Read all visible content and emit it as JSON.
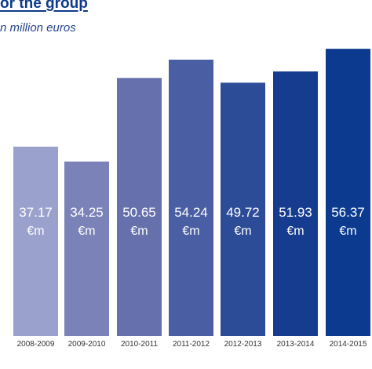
{
  "title": "or the group",
  "subtitle": "n million euros",
  "chart_data": {
    "type": "bar",
    "categories": [
      "2008-2009",
      "2009-2010",
      "2010-2011",
      "2011-2012",
      "2012-2013",
      "2013-2014",
      "2014-2015"
    ],
    "values": [
      37.17,
      34.25,
      50.65,
      54.24,
      49.72,
      51.93,
      56.37
    ],
    "value_labels": [
      "37.17",
      "34.25",
      "50.65",
      "54.24",
      "49.72",
      "51.93",
      "56.37"
    ],
    "unit_label": "€m",
    "colors": [
      "#9aa1cc",
      "#7b82b8",
      "#6570ad",
      "#4a5ea3",
      "#2d4c98",
      "#153c8f",
      "#0b3a8e"
    ],
    "label_color": "#ffffff",
    "ylim": [
      0,
      60
    ],
    "grid": false,
    "legend": "none"
  }
}
